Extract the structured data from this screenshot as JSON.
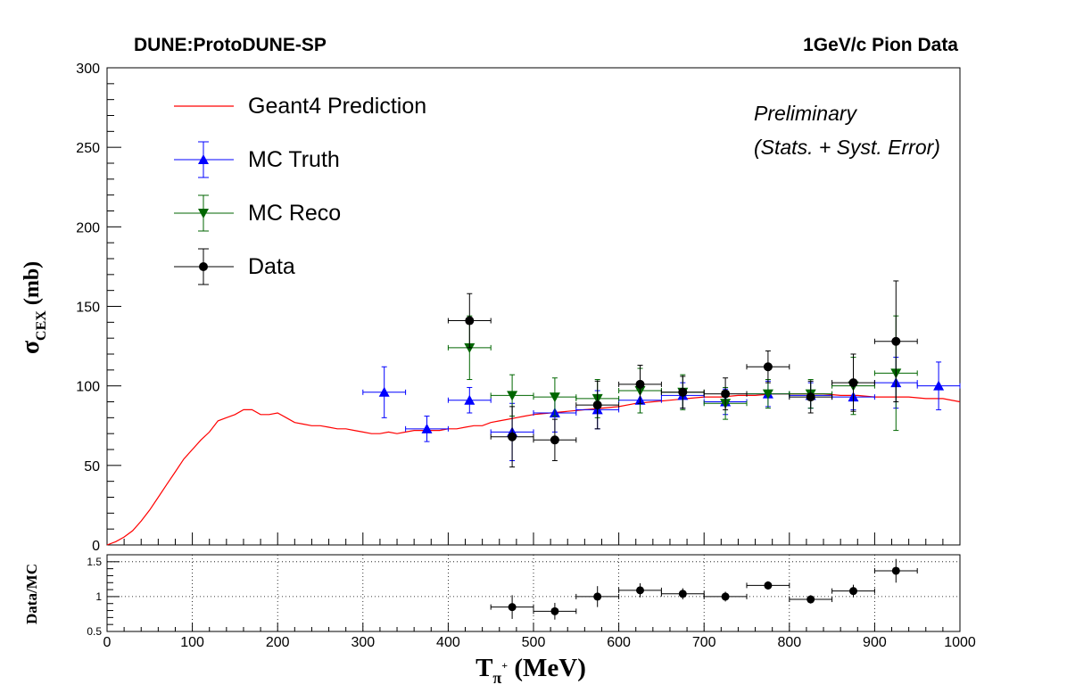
{
  "header": {
    "left_title": "DUNE:ProtoDUNE-SP",
    "right_title": "1GeV/c Pion Data"
  },
  "annotations": {
    "line1": "Preliminary",
    "line2": "(Stats. + Syst. Error)"
  },
  "colors": {
    "geant4": "#ff0000",
    "mc_truth": "#0000ff",
    "mc_reco": "#006600",
    "data": "#000000"
  },
  "chart_data": [
    {
      "type": "scatter",
      "title": "",
      "xlabel_main": "T",
      "xlabel_sub": "π",
      "xlabel_sup": "+",
      "xlabel_unit": " (MeV)",
      "ylabel_main": "σ",
      "ylabel_sub": "CEX",
      "ylabel_unit": " (mb)",
      "xlim": [
        0,
        1000
      ],
      "ylim": [
        0,
        300
      ],
      "x_ticks": [
        0,
        100,
        200,
        300,
        400,
        500,
        600,
        700,
        800,
        900,
        1000
      ],
      "y_ticks": [
        0,
        50,
        100,
        150,
        200,
        250,
        300
      ],
      "grid": false,
      "legend_position": "top-left",
      "legend": [
        "Geant4 Prediction",
        "MC Truth",
        "MC Reco",
        "Data"
      ],
      "series": [
        {
          "name": "Geant4 Prediction",
          "style": "line",
          "x": [
            0,
            10,
            20,
            30,
            40,
            50,
            60,
            70,
            80,
            90,
            100,
            110,
            120,
            130,
            140,
            150,
            160,
            170,
            180,
            190,
            200,
            210,
            220,
            230,
            240,
            250,
            260,
            270,
            280,
            290,
            300,
            310,
            320,
            330,
            340,
            350,
            360,
            370,
            380,
            390,
            400,
            410,
            420,
            430,
            440,
            450,
            460,
            470,
            480,
            490,
            500,
            520,
            540,
            560,
            580,
            600,
            620,
            640,
            660,
            680,
            700,
            720,
            740,
            760,
            780,
            800,
            820,
            840,
            860,
            880,
            900,
            920,
            940,
            960,
            980,
            1000
          ],
          "y": [
            0,
            2,
            5,
            9,
            15,
            22,
            30,
            38,
            46,
            54,
            60,
            66,
            71,
            78,
            80,
            82,
            85,
            85,
            82,
            82,
            83,
            80,
            77,
            76,
            75,
            75,
            74,
            73,
            73,
            72,
            71,
            70,
            70,
            71,
            70,
            71,
            72,
            72,
            72,
            72,
            73,
            73,
            74,
            75,
            75,
            77,
            78,
            79,
            80,
            81,
            82,
            83,
            84,
            85,
            86,
            87,
            89,
            90,
            91,
            92,
            93,
            93,
            94,
            94,
            95,
            95,
            95,
            95,
            94,
            94,
            93,
            93,
            93,
            92,
            92,
            90
          ]
        },
        {
          "name": "MC Truth",
          "style": "marker-triangle-up",
          "x": [
            325,
            375,
            425,
            475,
            525,
            575,
            625,
            675,
            725,
            775,
            825,
            875,
            925,
            975
          ],
          "y": [
            96,
            73,
            91,
            71,
            83,
            85,
            91,
            94,
            90,
            95,
            94,
            93,
            102,
            100
          ],
          "yerr": [
            16,
            8,
            8,
            18,
            12,
            12,
            8,
            8,
            8,
            8,
            8,
            8,
            16,
            15
          ],
          "xerr": 25
        },
        {
          "name": "MC Reco",
          "style": "marker-triangle-down",
          "x": [
            425,
            475,
            525,
            575,
            625,
            675,
            725,
            775,
            825,
            875,
            925
          ],
          "y": [
            124,
            94,
            93,
            92,
            97,
            96,
            89,
            95,
            95,
            100,
            108
          ],
          "yerr": [
            20,
            13,
            12,
            12,
            14,
            11,
            10,
            9,
            9,
            18,
            36
          ],
          "xerr": 25
        },
        {
          "name": "Data",
          "style": "marker-circle",
          "x": [
            425,
            475,
            525,
            575,
            625,
            675,
            725,
            775,
            825,
            875,
            925
          ],
          "y": [
            141,
            68,
            66,
            88,
            101,
            96,
            95,
            112,
            93,
            102,
            128
          ],
          "yerr": [
            17,
            19,
            13,
            15,
            12,
            10,
            10,
            10,
            10,
            18,
            38
          ],
          "xerr": 25
        }
      ]
    },
    {
      "type": "scatter",
      "title": "",
      "ylabel": "Data/MC",
      "xlim": [
        0,
        1000
      ],
      "ylim": [
        0.5,
        1.6
      ],
      "x_ticks": [
        0,
        100,
        200,
        300,
        400,
        500,
        600,
        700,
        800,
        900,
        1000
      ],
      "y_ticks": [
        0.5,
        1,
        1.5
      ],
      "y_tick_labels": [
        "0.5",
        "1",
        "1.5"
      ],
      "grid": true,
      "series": [
        {
          "name": "Data/MC",
          "style": "marker-circle",
          "x": [
            475,
            525,
            575,
            625,
            675,
            725,
            775,
            825,
            875,
            925
          ],
          "y": [
            0.85,
            0.79,
            1.0,
            1.09,
            1.04,
            1.0,
            1.16,
            0.96,
            1.08,
            1.37
          ],
          "yerr": [
            0.17,
            0.12,
            0.15,
            0.1,
            0.08,
            0.07,
            0.06,
            0.06,
            0.09,
            0.17
          ],
          "xerr": 25
        }
      ]
    }
  ]
}
